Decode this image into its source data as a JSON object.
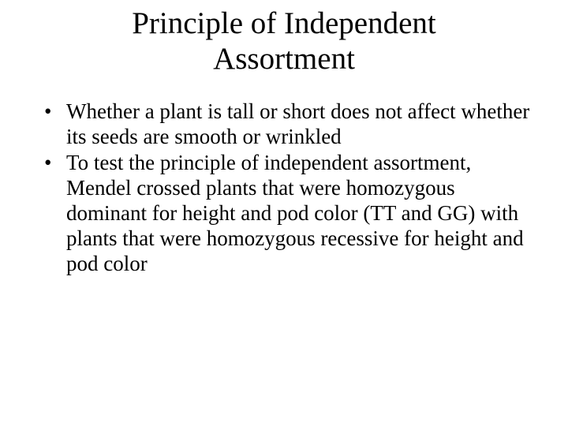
{
  "slide": {
    "title": "Principle of Independent Assortment",
    "bullets": [
      "Whether a plant is tall or short does not affect whether its seeds are smooth or wrinkled",
      "To test the principle of independent assortment, Mendel crossed plants that were homozygous dominant for height and pod color (TT and GG) with plants that were homozygous recessive for height and pod color"
    ],
    "title_fontsize": 39,
    "body_fontsize": 27,
    "text_color": "#000000",
    "background_color": "#ffffff",
    "font_family": "Times New Roman"
  }
}
